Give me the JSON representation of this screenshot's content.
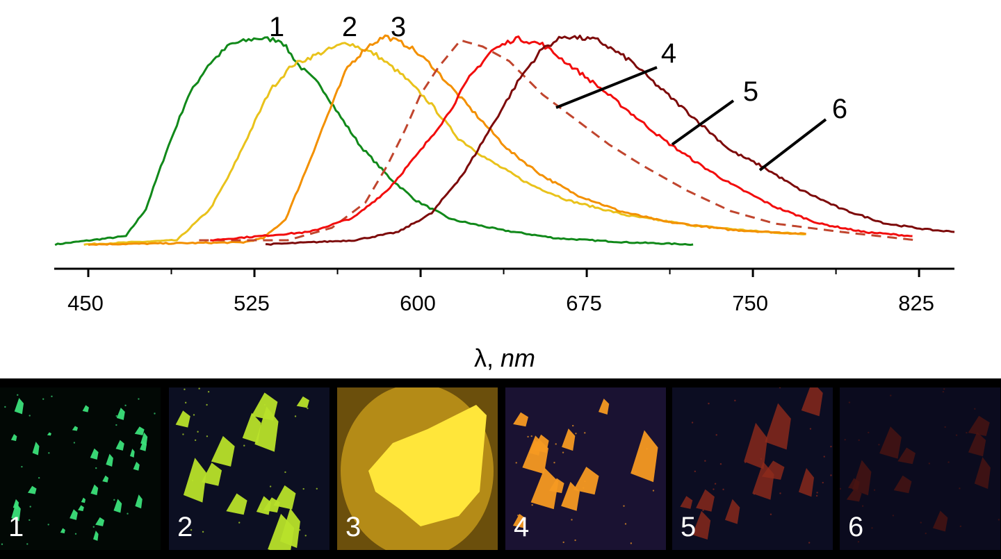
{
  "chart_data": {
    "type": "line",
    "title": "",
    "xlabel": "λ, nm",
    "xlabel_parts": {
      "symbol": "λ, ",
      "unit": "nm"
    },
    "ylabel": "",
    "xlim": [
      434,
      842
    ],
    "ylim": [
      0,
      1
    ],
    "xticks": [
      450,
      525,
      600,
      675,
      750,
      825
    ],
    "xtick_labels": [
      "450",
      "525",
      "600",
      "675",
      "750",
      "825"
    ],
    "minor_xticks": [
      487.5,
      562.5,
      637.5,
      712.5,
      787.5
    ],
    "grid": false,
    "y_axis_visible": false,
    "series": [
      {
        "label": "1",
        "color": "#11891a",
        "dashed": false,
        "x": [
          435,
          467,
          476,
          485,
          495,
          504,
          514,
          526,
          537,
          545,
          555,
          564,
          573,
          586,
          598,
          614,
          636,
          661,
          693,
          723
        ],
        "y": [
          0.0,
          0.04,
          0.17,
          0.44,
          0.71,
          0.86,
          0.96,
          0.99,
          0.98,
          0.86,
          0.76,
          0.61,
          0.47,
          0.32,
          0.21,
          0.12,
          0.07,
          0.03,
          0.01,
          0.0
        ]
      },
      {
        "label": "2",
        "color": "#e9c21b",
        "dashed": false,
        "x": [
          448,
          490,
          505,
          514,
          523,
          532,
          542,
          555,
          567,
          580,
          592,
          605,
          617,
          630,
          649,
          667,
          693,
          724,
          755,
          774
        ],
        "y": [
          0.0,
          0.02,
          0.17,
          0.34,
          0.54,
          0.74,
          0.86,
          0.92,
          0.97,
          0.91,
          0.81,
          0.67,
          0.51,
          0.41,
          0.29,
          0.21,
          0.14,
          0.09,
          0.06,
          0.05
        ]
      },
      {
        "label": "3",
        "color": "#f39000",
        "dashed": false,
        "x": [
          450,
          520,
          529,
          539,
          548,
          558,
          567,
          576,
          584,
          595,
          605,
          615,
          627,
          640,
          655,
          670,
          690,
          710,
          740,
          774
        ],
        "y": [
          0.0,
          0.01,
          0.03,
          0.12,
          0.35,
          0.62,
          0.85,
          0.95,
          1.0,
          0.95,
          0.86,
          0.74,
          0.6,
          0.45,
          0.33,
          0.24,
          0.16,
          0.11,
          0.07,
          0.05
        ]
      },
      {
        "label": "4",
        "color": "#c0452e",
        "dashed": true,
        "x": [
          500,
          540,
          560,
          575,
          585,
          593,
          600,
          608,
          618,
          628,
          640,
          655,
          670,
          685,
          700,
          720,
          740,
          760,
          790,
          824
        ],
        "y": [
          0.02,
          0.02,
          0.08,
          0.2,
          0.38,
          0.55,
          0.72,
          0.85,
          0.98,
          0.95,
          0.88,
          0.72,
          0.6,
          0.48,
          0.38,
          0.26,
          0.16,
          0.1,
          0.06,
          0.02
        ]
      },
      {
        "label": "5",
        "color": "#f20d0d",
        "dashed": false,
        "x": [
          505,
          550,
          570,
          585,
          600,
          612,
          622,
          632,
          643,
          655,
          665,
          680,
          695,
          710,
          725,
          740,
          760,
          780,
          800,
          822
        ],
        "y": [
          0.02,
          0.06,
          0.13,
          0.26,
          0.45,
          0.62,
          0.8,
          0.93,
          0.99,
          0.96,
          0.88,
          0.76,
          0.63,
          0.5,
          0.39,
          0.29,
          0.18,
          0.1,
          0.06,
          0.04
        ]
      },
      {
        "label": "6",
        "color": "#7d0a0a",
        "dashed": false,
        "x": [
          530,
          570,
          590,
          605,
          620,
          635,
          645,
          655,
          665,
          680,
          695,
          705,
          720,
          740,
          755,
          770,
          790,
          810,
          830,
          841
        ],
        "y": [
          0.0,
          0.02,
          0.06,
          0.15,
          0.35,
          0.62,
          0.8,
          0.94,
          1.0,
          0.98,
          0.88,
          0.78,
          0.64,
          0.45,
          0.37,
          0.27,
          0.17,
          0.1,
          0.07,
          0.06
        ]
      }
    ],
    "annotations": [
      "1",
      "2",
      "3",
      "4",
      "5",
      "6"
    ]
  },
  "photos": {
    "panels": [
      {
        "label": "1",
        "emission": "green",
        "background": "#020805",
        "crystal": "#3be07a"
      },
      {
        "label": "2",
        "emission": "yellow-green",
        "background": "#0c0f22",
        "crystal": "#b8e22a"
      },
      {
        "label": "3",
        "emission": "yellow",
        "background": "#6b4f0c",
        "crystal": "#ffe63a"
      },
      {
        "label": "4",
        "emission": "orange",
        "background": "#1a1232",
        "crystal": "#f59a22"
      },
      {
        "label": "5",
        "emission": "red",
        "background": "#0c0d22",
        "crystal": "#8f2a1c"
      },
      {
        "label": "6",
        "emission": "dark red",
        "background": "#0b0b1e",
        "crystal": "#4a1412"
      }
    ]
  }
}
